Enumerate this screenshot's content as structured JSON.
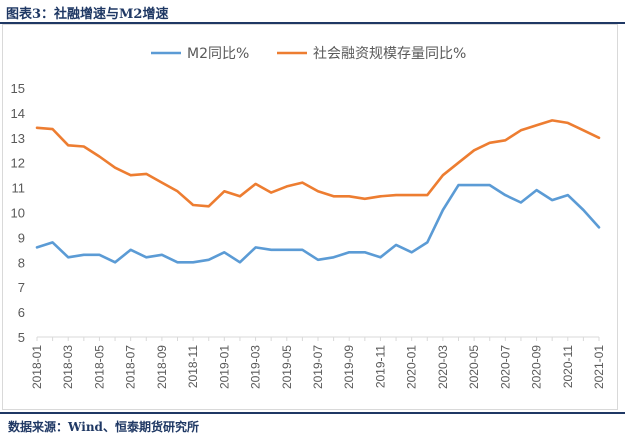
{
  "figure_title": "图表3：社融增速与M2增速",
  "source_note": "数据来源：Wind、恒泰期货研究所",
  "colors": {
    "m2": "#5b9bd5",
    "social_financing": "#ed7d31",
    "axis": "#d9d9d9",
    "text": "#595959",
    "title_text": "#1f3864"
  },
  "chart_data": {
    "type": "line",
    "title": "",
    "xlabel": "",
    "ylabel": "",
    "ylim": [
      5,
      15
    ],
    "yticks": [
      5,
      6,
      7,
      8,
      9,
      10,
      11,
      12,
      13,
      14,
      15
    ],
    "grid": false,
    "legend_position": "top-center",
    "x": [
      "2018-01",
      "2018-02",
      "2018-03",
      "2018-04",
      "2018-05",
      "2018-06",
      "2018-07",
      "2018-08",
      "2018-09",
      "2018-10",
      "2018-11",
      "2018-12",
      "2019-01",
      "2019-02",
      "2019-03",
      "2019-04",
      "2019-05",
      "2019-06",
      "2019-07",
      "2019-08",
      "2019-09",
      "2019-10",
      "2019-11",
      "2019-12",
      "2020-01",
      "2020-02",
      "2020-03",
      "2020-04",
      "2020-05",
      "2020-06",
      "2020-07",
      "2020-08",
      "2020-09",
      "2020-10",
      "2020-11",
      "2020-12",
      "2021-01"
    ],
    "x_tick_labels": [
      "2018-01",
      "2018-03",
      "2018-05",
      "2018-07",
      "2018-09",
      "2018-11",
      "2019-01",
      "2019-03",
      "2019-05",
      "2019-07",
      "2019-09",
      "2019-11",
      "2020-01",
      "2020-03",
      "2020-05",
      "2020-07",
      "2020-09",
      "2020-11",
      "2021-01"
    ],
    "series": [
      {
        "name": "M2同比%",
        "color": "#5b9bd5",
        "values": [
          8.6,
          8.8,
          8.2,
          8.3,
          8.3,
          8.0,
          8.5,
          8.2,
          8.3,
          8.0,
          8.0,
          8.1,
          8.4,
          8.0,
          8.6,
          8.5,
          8.5,
          8.5,
          8.1,
          8.2,
          8.4,
          8.4,
          8.2,
          8.7,
          8.4,
          8.8,
          10.1,
          11.1,
          11.1,
          11.1,
          10.7,
          10.4,
          10.9,
          10.5,
          10.7,
          10.1,
          9.4
        ]
      },
      {
        "name": "社会融资规模存量同比%",
        "color": "#ed7d31",
        "values": [
          13.4,
          13.35,
          12.7,
          12.65,
          12.25,
          11.8,
          11.5,
          11.55,
          11.2,
          10.85,
          10.3,
          10.25,
          10.85,
          10.65,
          11.15,
          10.8,
          11.05,
          11.2,
          10.85,
          10.65,
          10.65,
          10.55,
          10.65,
          10.7,
          10.7,
          10.7,
          11.5,
          12.0,
          12.5,
          12.8,
          12.9,
          13.3,
          13.5,
          13.7,
          13.6,
          13.3,
          13.0
        ]
      }
    ]
  }
}
